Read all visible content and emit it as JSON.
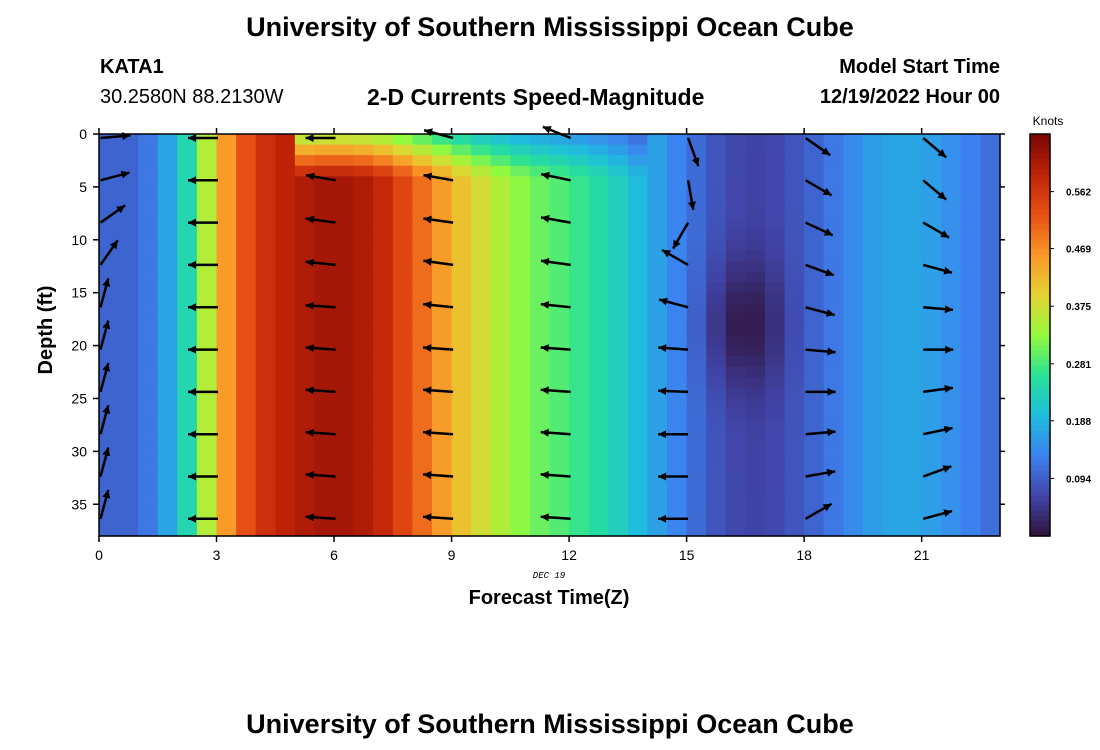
{
  "header": {
    "title": "University of Southern Mississippi Ocean Cube",
    "station_id": "KATA1",
    "station_coords": "30.2580N  88.2130W",
    "plot_title": "2-D Currents Speed-Magnitude",
    "model_start_label": "Model Start Time",
    "model_start_value": "12/19/2022 Hour 00"
  },
  "footer": {
    "title": "University of Southern Mississippi Ocean Cube"
  },
  "chart_data": {
    "type": "heatmap",
    "xlabel": "Forecast Time(Z)",
    "ylabel": "Depth (ft)",
    "date_label": "DEC 19",
    "xlim": [
      0,
      23
    ],
    "ylim": [
      0,
      38
    ],
    "y_inverted": true,
    "x_ticks": [
      0,
      3,
      6,
      9,
      12,
      15,
      18,
      21
    ],
    "y_ticks": [
      0,
      5,
      10,
      15,
      20,
      25,
      30,
      35
    ],
    "colorbar": {
      "label": "Knots",
      "ticks": [
        "0.562",
        "0.469",
        "0.375",
        "0.281",
        "0.188",
        "0.094"
      ],
      "tick_values": [
        0.562,
        0.469,
        0.375,
        0.281,
        0.188,
        0.094
      ],
      "range": [
        0.0,
        0.656
      ]
    },
    "speed_profile_by_hour": [
      {
        "hour": 0,
        "speed": 0.1
      },
      {
        "hour": 1,
        "speed": 0.1
      },
      {
        "hour": 1.5,
        "speed": 0.14
      },
      {
        "hour": 2,
        "speed": 0.2
      },
      {
        "hour": 2.5,
        "speed": 0.28
      },
      {
        "hour": 3,
        "speed": 0.42
      },
      {
        "hour": 4,
        "speed": 0.56
      },
      {
        "hour": 5,
        "speed": 0.6
      },
      {
        "hour": 6,
        "speed": 0.62
      },
      {
        "hour": 7,
        "speed": 0.6
      },
      {
        "hour": 8,
        "speed": 0.52
      },
      {
        "hour": 9,
        "speed": 0.43
      },
      {
        "hour": 10,
        "speed": 0.36
      },
      {
        "hour": 11,
        "speed": 0.31
      },
      {
        "hour": 12,
        "speed": 0.28
      },
      {
        "hour": 13,
        "speed": 0.24
      },
      {
        "hour": 14,
        "speed": 0.18
      },
      {
        "hour": 15,
        "speed": 0.12
      },
      {
        "hour": 16,
        "speed": 0.07
      },
      {
        "hour": 17,
        "speed": 0.06
      },
      {
        "hour": 18,
        "speed": 0.09
      },
      {
        "hour": 19,
        "speed": 0.13
      },
      {
        "hour": 20,
        "speed": 0.17
      },
      {
        "hour": 21,
        "speed": 0.17
      },
      {
        "hour": 22,
        "speed": 0.14
      },
      {
        "hour": 23,
        "speed": 0.1
      }
    ],
    "vector_hours": [
      0,
      3,
      6,
      9,
      12,
      15,
      18,
      21
    ],
    "vector_depths": [
      0,
      4,
      8,
      12,
      16,
      20,
      24,
      28,
      32,
      36
    ],
    "vector_direction_deg": {
      "note": "math convention, 0 = toward +x (east), 90 = up",
      "0": [
        5,
        15,
        35,
        55,
        75,
        75,
        75,
        75,
        75,
        75
      ],
      "3": [
        180,
        180,
        180,
        180,
        180,
        180,
        180,
        180,
        180,
        180
      ],
      "6": [
        180,
        170,
        172,
        174,
        176,
        176,
        176,
        176,
        176,
        176
      ],
      "9": [
        165,
        170,
        172,
        172,
        174,
        176,
        176,
        176,
        176,
        176
      ],
      "12": [
        158,
        168,
        170,
        172,
        174,
        176,
        176,
        176,
        176,
        176
      ],
      "15": [
        -70,
        -80,
        -120,
        150,
        165,
        176,
        178,
        180,
        180,
        180
      ],
      "18": [
        -35,
        -30,
        -25,
        -20,
        -15,
        -5,
        0,
        5,
        10,
        30
      ],
      "21": [
        -40,
        -40,
        -30,
        -15,
        -5,
        0,
        8,
        12,
        20,
        15
      ]
    }
  }
}
